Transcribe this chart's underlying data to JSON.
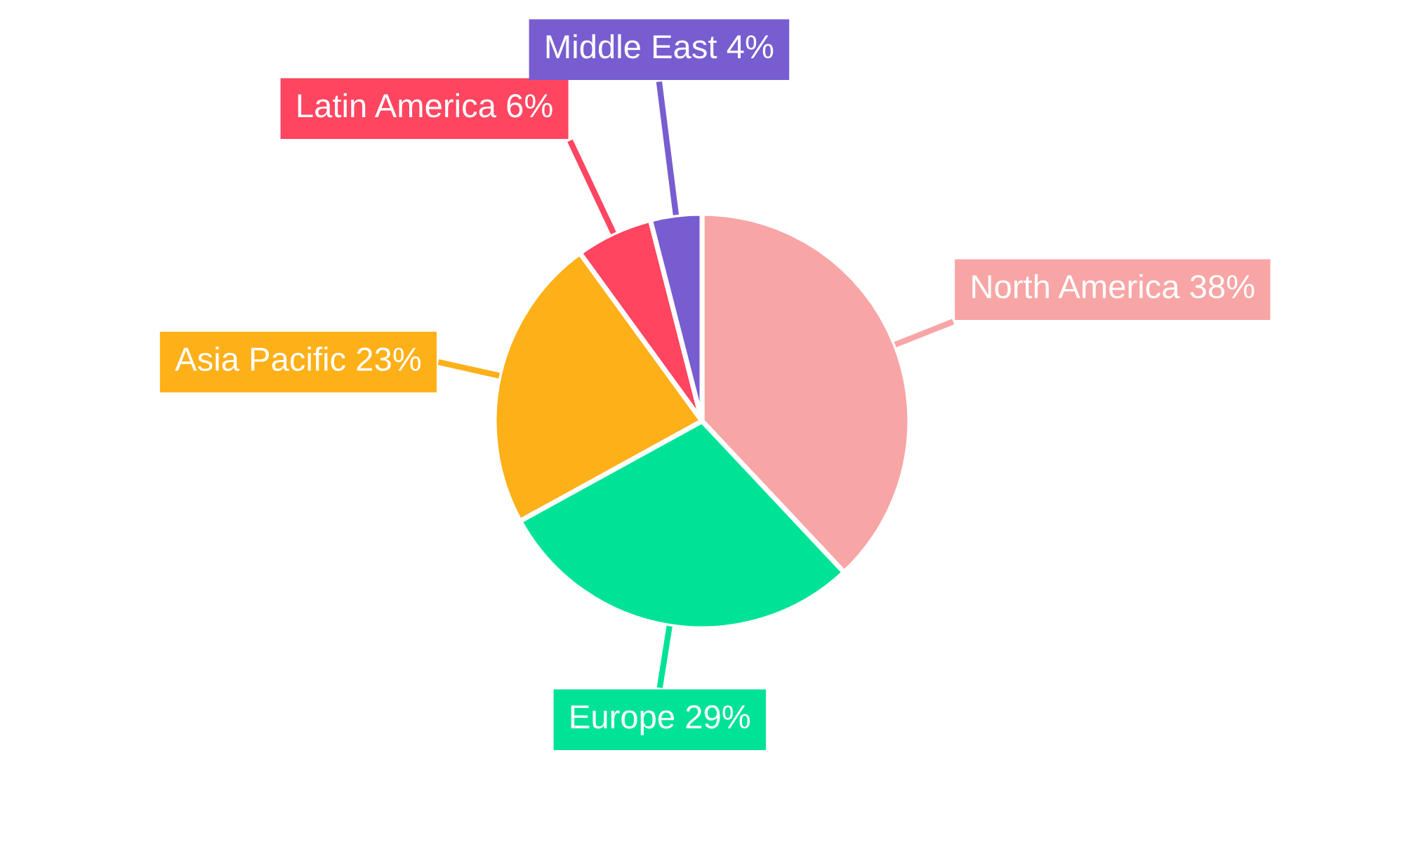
{
  "chart_data": {
    "type": "pie",
    "categories": [
      "North America",
      "Europe",
      "Asia Pacific",
      "Latin America",
      "Middle East"
    ],
    "values": [
      38,
      29,
      23,
      6,
      4
    ],
    "value_labels": [
      "38%",
      "29%",
      "23%",
      "6%",
      "4%"
    ],
    "colors": [
      "#f8a5a6",
      "#00e396",
      "#feb019",
      "#ff4560",
      "#775dd0"
    ],
    "legend": false
  }
}
